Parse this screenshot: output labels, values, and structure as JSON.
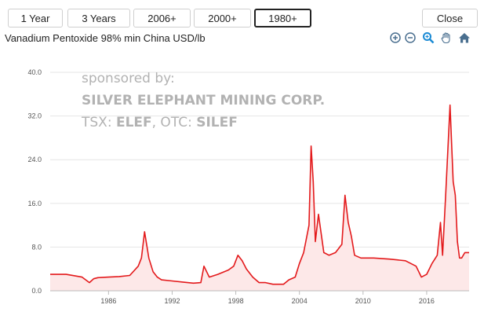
{
  "toolbar": {
    "ranges": [
      "1 Year",
      "3 Years",
      "2006+",
      "2000+",
      "1980+"
    ],
    "active_range": "1980+",
    "close_label": "Close"
  },
  "chart_title": "Vanadium Pentoxide 98% min China USD/lb",
  "zoom_tools": [
    "zoom-in-icon",
    "zoom-out-icon",
    "magnifier-icon",
    "pan-hand-icon",
    "home-icon"
  ],
  "sponsor": {
    "line1": "sponsored by:",
    "line2": "SILVER ELEPHANT MINING CORP.",
    "line3_prefix": "TSX: ",
    "line3_tsx": "ELEF",
    "line3_mid": ", OTC: ",
    "line3_otc": "SILEF"
  },
  "colors": {
    "line": "#e3191b",
    "fill": "#fde8e8",
    "grid": "#e6e6e6",
    "active_border": "#222222"
  },
  "chart_data": {
    "type": "area",
    "title": "Vanadium Pentoxide 98% min China USD/lb",
    "xlim": [
      1980.5,
      2020.0
    ],
    "ylim": [
      0,
      40
    ],
    "y_ticks": [
      0.0,
      8.0,
      16.0,
      24.0,
      32.0,
      40.0
    ],
    "y_tick_labels": [
      "0.0",
      "8.0",
      "16.0",
      "24.0",
      "32.0",
      "40.0"
    ],
    "x_ticks": [
      1986,
      1992,
      1998,
      2004,
      2010,
      2016
    ],
    "x_tick_labels": [
      "1986",
      "1992",
      "1998",
      "2004",
      "2010",
      "2016"
    ],
    "grid": true,
    "series": [
      {
        "x": [
          1980.5,
          1982.0,
          1983.5,
          1984.2,
          1984.6,
          1985.0,
          1986.0,
          1987.0,
          1988.0,
          1988.8,
          1989.1,
          1989.4,
          1989.8,
          1990.2,
          1990.6,
          1991.0,
          1992.0,
          1993.0,
          1994.0,
          1994.7,
          1995.0,
          1995.5,
          1996.3,
          1997.3,
          1997.8,
          1998.2,
          1998.6,
          1999.0,
          1999.6,
          2000.2,
          2000.8,
          2001.5,
          2002.5,
          2003.0,
          2003.6,
          2004.0,
          2004.4,
          2004.9,
          2005.1,
          2005.3,
          2005.5,
          2005.8,
          2006.3,
          2006.8,
          2007.4,
          2008.0,
          2008.3,
          2008.6,
          2008.9,
          2009.2,
          2009.8,
          2011.0,
          2012.5,
          2014.0,
          2015.0,
          2015.5,
          2016.0,
          2016.5,
          2017.0,
          2017.3,
          2017.5,
          2017.8,
          2018.2,
          2018.5,
          2018.7,
          2018.9,
          2019.1,
          2019.3,
          2019.6,
          2020.0
        ],
        "y": [
          3.0,
          3.0,
          2.5,
          1.5,
          2.2,
          2.4,
          2.5,
          2.6,
          2.8,
          4.5,
          6.0,
          10.8,
          6.0,
          3.5,
          2.5,
          2.0,
          1.8,
          1.6,
          1.4,
          1.5,
          4.5,
          2.5,
          3.0,
          3.8,
          4.5,
          6.5,
          5.5,
          4.0,
          2.5,
          1.5,
          1.5,
          1.2,
          1.2,
          2.0,
          2.5,
          5.0,
          7.0,
          12.0,
          26.5,
          20.0,
          9.0,
          14.0,
          7.0,
          6.5,
          7.0,
          8.5,
          17.5,
          12.5,
          10.0,
          6.5,
          6.0,
          6.0,
          5.8,
          5.5,
          4.5,
          2.5,
          3.0,
          5.0,
          6.5,
          12.5,
          6.5,
          18.0,
          34.0,
          20.0,
          17.5,
          9.0,
          6.0,
          6.0,
          7.0,
          7.0
        ]
      }
    ]
  }
}
